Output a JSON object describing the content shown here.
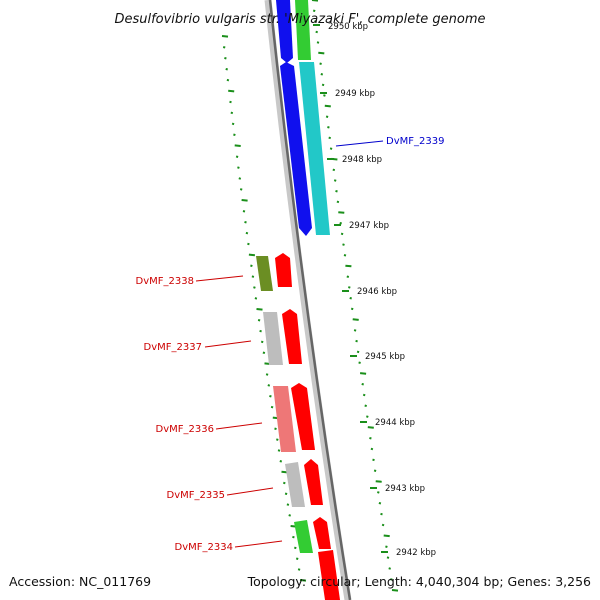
{
  "title": "Desulfovibrio vulgaris str. 'Miyazaki F', complete genome",
  "accession": "Accession: NC_011769",
  "topology": "Topology: circular; Length: 4,040,304 bp; Genes: 3,256",
  "colors": {
    "backbone": "#777777",
    "dot_ring": "#1a8f1a",
    "label_forward": "#0000cc",
    "label_reverse": "#cc0000",
    "blue": "#1010ee",
    "cyan": "#22c8c8",
    "green": "#33cc33",
    "olive": "#6b8e23",
    "red": "#ff0000",
    "grey": "#bdbdbd",
    "pink": "#ee7777"
  },
  "ticks": [
    {
      "label": "2950 kbp"
    },
    {
      "label": "2949 kbp"
    },
    {
      "label": "2948 kbp"
    },
    {
      "label": "2947 kbp"
    },
    {
      "label": "2946 kbp"
    },
    {
      "label": "2945 kbp"
    },
    {
      "label": "2944 kbp"
    },
    {
      "label": "2943 kbp"
    },
    {
      "label": "2942 kbp"
    }
  ],
  "gene_labels": [
    {
      "text": "DvMF_2339",
      "strand": "forward"
    },
    {
      "text": "DvMF_2338",
      "strand": "reverse"
    },
    {
      "text": "DvMF_2337",
      "strand": "reverse"
    },
    {
      "text": "DvMF_2336",
      "strand": "reverse"
    },
    {
      "text": "DvMF_2335",
      "strand": "reverse"
    },
    {
      "text": "DvMF_2334",
      "strand": "reverse"
    }
  ]
}
